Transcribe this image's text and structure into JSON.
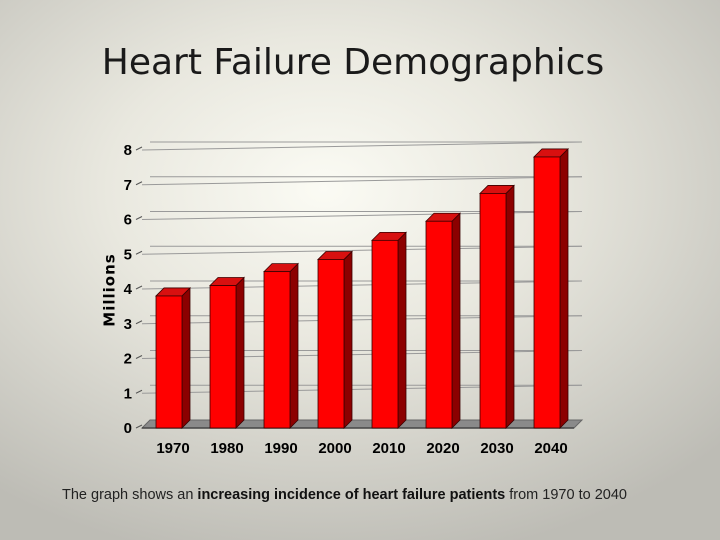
{
  "slide": {
    "title": "Heart Failure Demographics",
    "caption_pre": "The graph shows an ",
    "caption_bold": "increasing incidence of heart failure patients",
    "caption_post": " from 1970 to 2040"
  },
  "chart_data": {
    "type": "bar",
    "title": "",
    "ylabel": "Millions",
    "xlabel": "",
    "categories": [
      "1970",
      "1980",
      "1990",
      "2000",
      "2010",
      "2020",
      "2030",
      "2040"
    ],
    "values": [
      3.8,
      4.1,
      4.5,
      4.85,
      5.4,
      5.95,
      6.75,
      7.8
    ],
    "ylim": [
      0,
      8
    ],
    "yticks": [
      "0",
      "1",
      "2",
      "3",
      "4",
      "5",
      "6",
      "7",
      "8"
    ],
    "grid": true,
    "legend": "none",
    "colors": {
      "bar_front": "#ff0000",
      "bar_top": "#d81010",
      "bar_side": "#8c0000",
      "floor": "#8a8a8a"
    }
  }
}
